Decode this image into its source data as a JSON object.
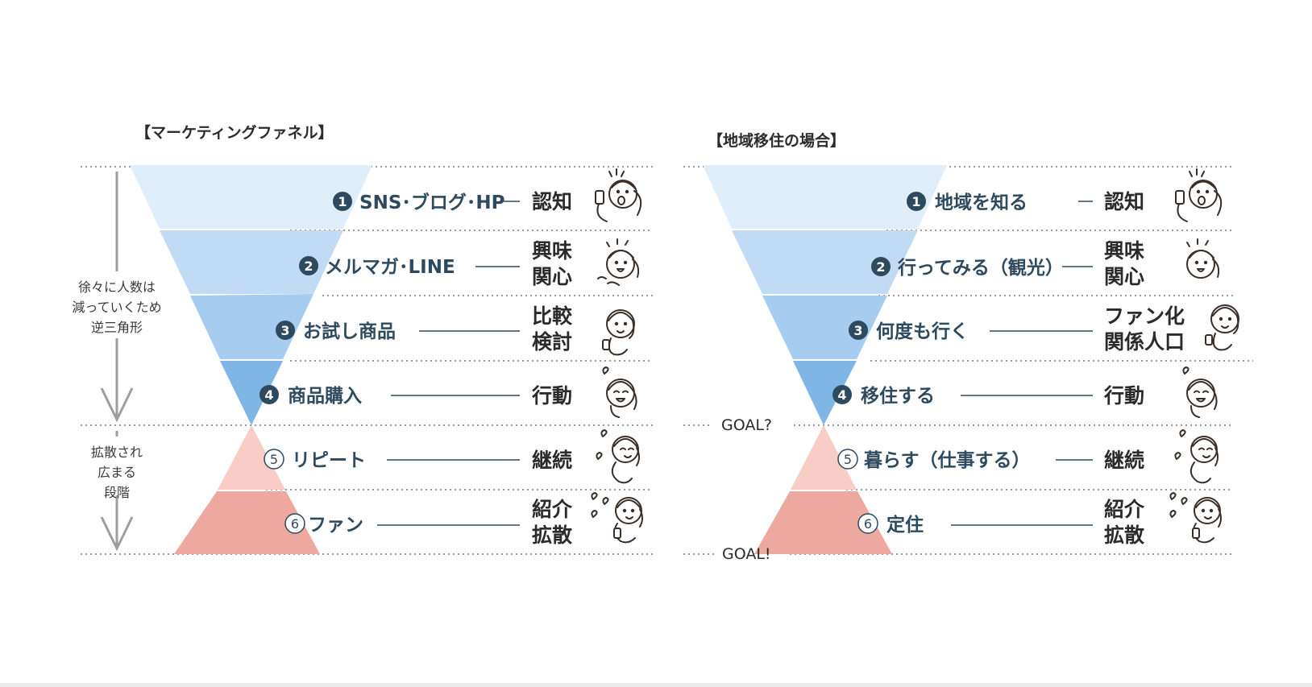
{
  "colors": {
    "tier1": "#dfeef9",
    "tier2": "#c0dbf3",
    "tier3": "#a6ccef",
    "tier4": "#7fb6e6",
    "tier5": "#f7cdc6",
    "tier6": "#eda9a0",
    "stage_text": "#2e4a5e",
    "dotted_rule": "#9a9a9a",
    "arrow": "#9e9e9e"
  },
  "left": {
    "title": "【マーケティングファネル】",
    "side_top": [
      "徐々に人数は",
      "減っていくため",
      "逆三角形"
    ],
    "side_bottom": [
      "拡散され",
      "広まる",
      "段階"
    ],
    "rows": [
      {
        "num": "1",
        "label": "SNS･ブログ･HP",
        "result": [
          "認知"
        ],
        "icon": "surprised-person-with-phone-icon"
      },
      {
        "num": "2",
        "label": "メルマガ･LINE",
        "result": [
          "興味",
          "関心"
        ],
        "icon": "curious-person-icon"
      },
      {
        "num": "3",
        "label": "お試し商品",
        "result": [
          "比較",
          "検討"
        ],
        "icon": "person-comparing-icon"
      },
      {
        "num": "4",
        "label": "商品購入",
        "result": [
          "行動"
        ],
        "icon": "happy-person-icon"
      },
      {
        "num": "5",
        "label": "リピート",
        "result": [
          "継続"
        ],
        "icon": "person-with-hearts-icon"
      },
      {
        "num": "6",
        "label": "ファン",
        "result": [
          "紹介",
          "拡散"
        ],
        "icon": "person-sharing-hearts-icon"
      }
    ]
  },
  "right": {
    "title": "【地域移住の場合】",
    "goal_mid": "GOAL?",
    "goal_end": "GOAL!",
    "rows": [
      {
        "num": "1",
        "label": "地域を知る",
        "result": [
          "認知"
        ],
        "icon": "surprised-person-with-phone-icon"
      },
      {
        "num": "2",
        "label": "行ってみる（観光）",
        "result": [
          "興味",
          "関心"
        ],
        "icon": "curious-person-icon"
      },
      {
        "num": "3",
        "label": "何度も行く",
        "result": [
          "ファン化",
          "関係人口"
        ],
        "icon": "person-comparing-icon"
      },
      {
        "num": "4",
        "label": "移住する",
        "result": [
          "行動"
        ],
        "icon": "happy-person-icon"
      },
      {
        "num": "5",
        "label": "暮らす（仕事する）",
        "result": [
          "継続"
        ],
        "icon": "person-with-hearts-icon"
      },
      {
        "num": "6",
        "label": "定住",
        "result": [
          "紹介",
          "拡散"
        ],
        "icon": "person-sharing-hearts-icon"
      }
    ]
  }
}
